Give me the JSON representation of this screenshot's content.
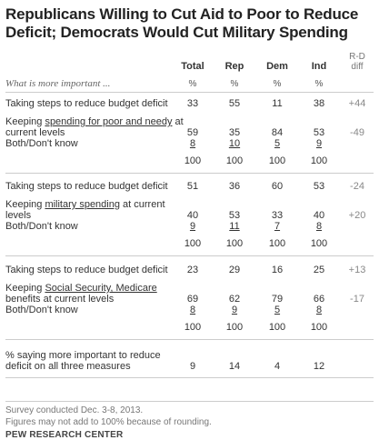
{
  "title": "Republicans Willing to Cut Aid to Poor to Reduce Deficit; Democrats Would Cut Military Spending",
  "chart_data": {
    "type": "table",
    "question": "What is more important ...",
    "columns": [
      "Total",
      "Rep",
      "Dem",
      "Ind"
    ],
    "pct_label": "%",
    "diff_header": [
      "R-D",
      "diff"
    ],
    "sections": [
      {
        "rows": [
          {
            "label": "Taking steps to reduce budget deficit",
            "values": [
              "33",
              "55",
              "11",
              "38"
            ],
            "diff": "+44"
          },
          {
            "label_pre": "Keeping ",
            "label_ul": "spending for poor and needy",
            "label_post": " at current levels",
            "values": [
              "59",
              "35",
              "84",
              "53"
            ],
            "diff": "-49"
          },
          {
            "label": "Both/Don't know",
            "values": [
              "8",
              "10",
              "5",
              "9"
            ],
            "diff": ""
          },
          {
            "label": "",
            "values": [
              "100",
              "100",
              "100",
              "100"
            ],
            "diff": ""
          }
        ]
      },
      {
        "rows": [
          {
            "label": "Taking steps to reduce budget deficit",
            "values": [
              "51",
              "36",
              "60",
              "53"
            ],
            "diff": "-24"
          },
          {
            "label_pre": "Keeping ",
            "label_ul": "military spending",
            "label_post": " at current levels",
            "values": [
              "40",
              "53",
              "33",
              "40"
            ],
            "diff": "+20"
          },
          {
            "label": "Both/Don't know",
            "values": [
              "9",
              "11",
              "7",
              "8"
            ],
            "diff": ""
          },
          {
            "label": "",
            "values": [
              "100",
              "100",
              "100",
              "100"
            ],
            "diff": ""
          }
        ]
      },
      {
        "rows": [
          {
            "label": "Taking steps to reduce budget deficit",
            "values": [
              "23",
              "29",
              "16",
              "25"
            ],
            "diff": "+13"
          },
          {
            "label_pre": "Keeping ",
            "label_ul": "Social Security, Medicare",
            "label_post": " benefits at current levels",
            "values": [
              "69",
              "62",
              "79",
              "66"
            ],
            "diff": "-17"
          },
          {
            "label": "Both/Don't know",
            "values": [
              "8",
              "9",
              "5",
              "8"
            ],
            "diff": ""
          },
          {
            "label": "",
            "values": [
              "100",
              "100",
              "100",
              "100"
            ],
            "diff": ""
          }
        ]
      }
    ],
    "summary": {
      "label": "% saying more important to reduce deficit on all three measures",
      "values": [
        "9",
        "14",
        "4",
        "12"
      ],
      "diff": ""
    }
  },
  "notes": [
    "Survey conducted Dec. 3-8, 2013.",
    "Figures may not add to 100% because of rounding."
  ],
  "source": "PEW RESEARCH CENTER"
}
